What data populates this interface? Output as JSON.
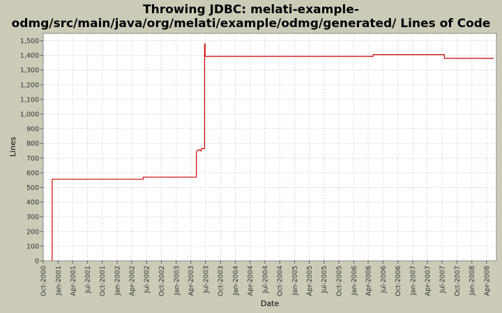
{
  "chart_data": {
    "type": "line",
    "title_lines": [
      "Throwing JDBC: melati-example-",
      "odmg/src/main/java/org/melati/example/odmg/generated/ Lines of Code"
    ],
    "xlabel": "Date",
    "ylabel": "Lines",
    "ylim": [
      0,
      1550
    ],
    "xlim": [
      "2000-10-01",
      "2008-06-01"
    ],
    "yticks": [
      0,
      100,
      200,
      300,
      400,
      500,
      600,
      700,
      800,
      900,
      1000,
      1100,
      1200,
      1300,
      1400,
      1500
    ],
    "ytick_labels": [
      "0",
      "100",
      "200",
      "300",
      "400",
      "500",
      "600",
      "700",
      "800",
      "900",
      "1,000",
      "1,100",
      "1,200",
      "1,300",
      "1,400",
      "1,500"
    ],
    "xticks": [
      "2000-10-01",
      "2001-01-01",
      "2001-04-01",
      "2001-07-01",
      "2001-10-01",
      "2002-01-01",
      "2002-04-01",
      "2002-07-01",
      "2002-10-01",
      "2003-01-01",
      "2003-04-01",
      "2003-07-01",
      "2003-10-01",
      "2004-01-01",
      "2004-04-01",
      "2004-07-01",
      "2004-10-01",
      "2005-01-01",
      "2005-04-01",
      "2005-07-01",
      "2005-10-01",
      "2006-01-01",
      "2006-04-01",
      "2006-07-01",
      "2006-10-01",
      "2007-01-01",
      "2007-04-01",
      "2007-07-01",
      "2007-10-01",
      "2008-01-01",
      "2008-04-01"
    ],
    "xtick_labels": [
      "Oct-2000",
      "Jan-2001",
      "Apr-2001",
      "Jul-2001",
      "Oct-2001",
      "Jan-2002",
      "Apr-2002",
      "Jul-2002",
      "Oct-2002",
      "Jan-2003",
      "Apr-2003",
      "Jul-2003",
      "Oct-2003",
      "Jan-2004",
      "Apr-2004",
      "Jul-2004",
      "Oct-2004",
      "Jan-2005",
      "Apr-2005",
      "Jul-2005",
      "Oct-2005",
      "Jan-2006",
      "Apr-2006",
      "Jul-2006",
      "Oct-2006",
      "Jan-2007",
      "Apr-2007",
      "Jul-2007",
      "Oct-2007",
      "Jan-2008",
      "Apr-2008"
    ],
    "grid": true,
    "line_color": "#cc0000",
    "series": [
      {
        "points": [
          [
            "2000-11-25",
            0
          ],
          [
            "2000-11-25",
            556
          ],
          [
            "2002-06-10",
            556
          ],
          [
            "2002-06-10",
            570
          ],
          [
            "2003-05-05",
            570
          ],
          [
            "2003-05-05",
            735
          ],
          [
            "2003-05-12",
            755
          ],
          [
            "2003-05-28",
            755
          ],
          [
            "2003-05-28",
            750
          ],
          [
            "2003-06-05",
            750
          ],
          [
            "2003-06-05",
            765
          ],
          [
            "2003-06-25",
            765
          ],
          [
            "2003-06-25",
            1478
          ],
          [
            "2003-06-28",
            1478
          ],
          [
            "2003-06-28",
            1393
          ],
          [
            "2006-05-01",
            1393
          ],
          [
            "2006-05-01",
            1405
          ],
          [
            "2007-07-15",
            1405
          ],
          [
            "2007-07-15",
            1380
          ],
          [
            "2008-05-15",
            1380
          ]
        ]
      }
    ]
  }
}
